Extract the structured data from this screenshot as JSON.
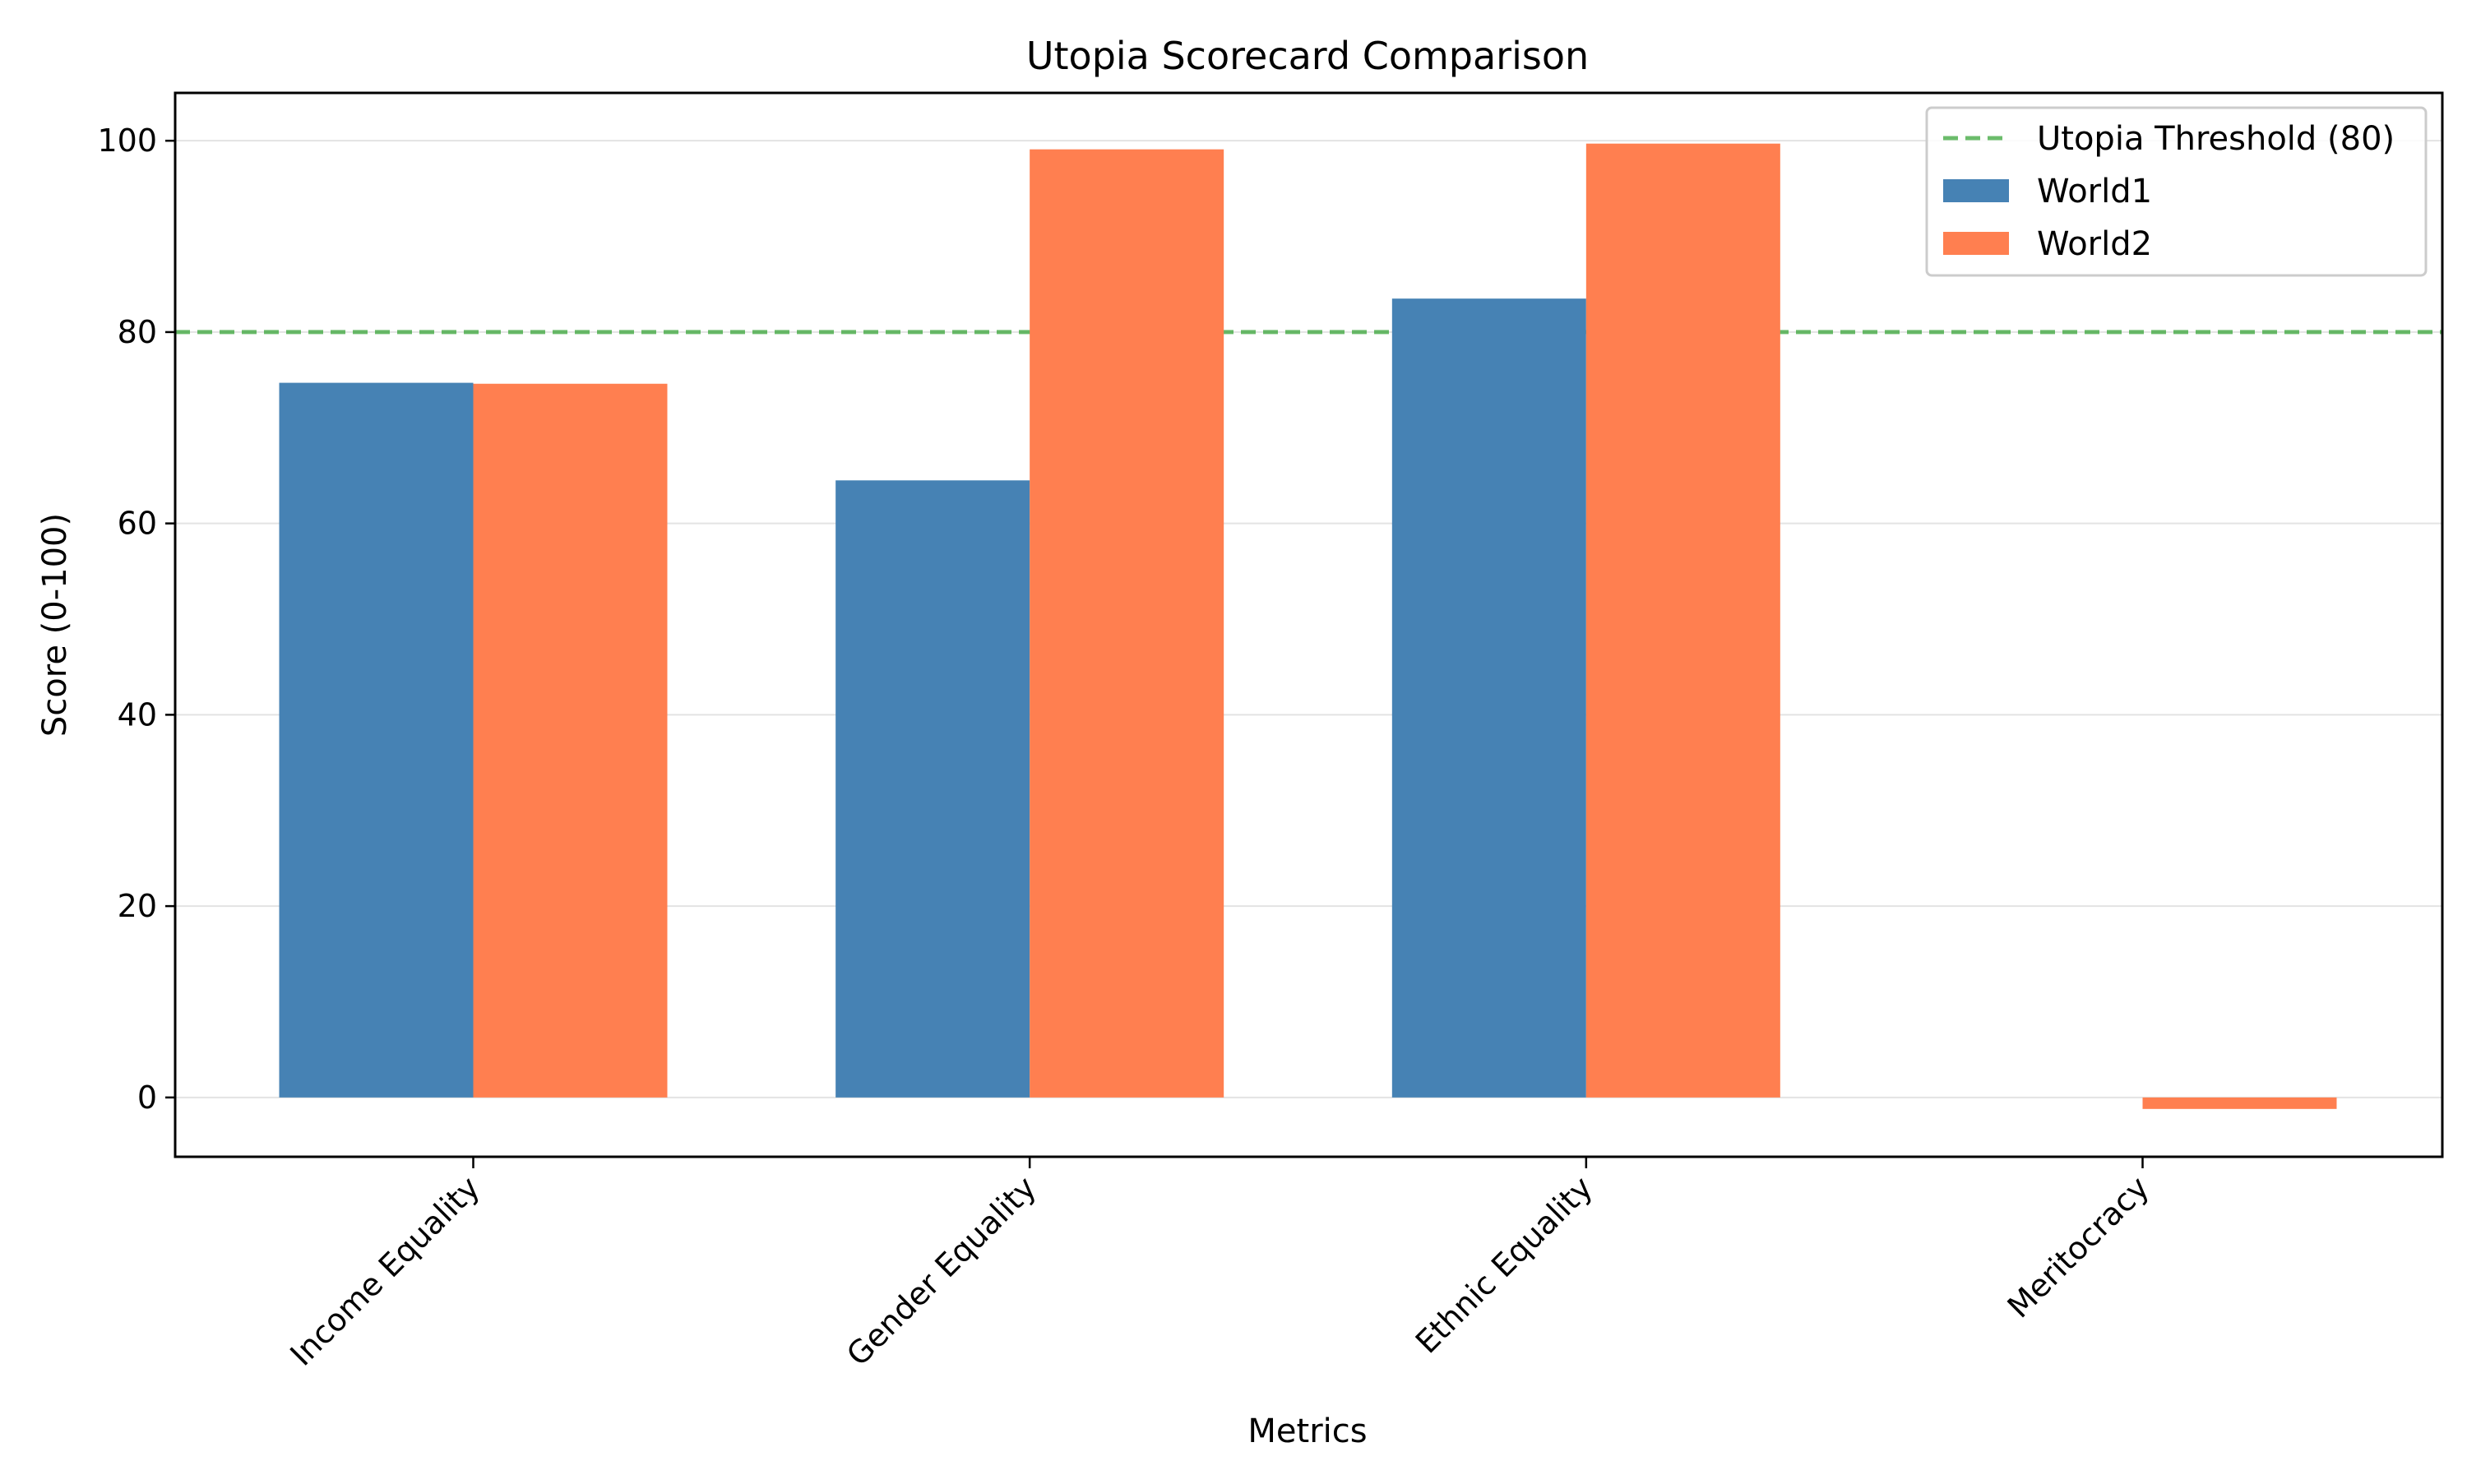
{
  "chart_data": {
    "type": "bar",
    "title": "Utopia Scorecard Comparison",
    "xlabel": "Metrics",
    "ylabel": "Score (0-100)",
    "categories": [
      "Income Equality",
      "Gender Equality",
      "Ethnic Equality",
      "Meritocracy"
    ],
    "series": [
      {
        "name": "World1",
        "color": "#4682b4",
        "values": [
          74.7,
          64.5,
          83.5,
          0
        ]
      },
      {
        "name": "World2",
        "color": "#ff7f50",
        "values": [
          74.6,
          99.1,
          99.7,
          -1.2
        ]
      }
    ],
    "reference_line": {
      "label": "Utopia Threshold (80)",
      "value": 80,
      "color": "#2ca02c",
      "style": "dashed"
    },
    "ylim": [
      -6.2,
      105
    ],
    "yticks": [
      0,
      20,
      40,
      60,
      80,
      100
    ],
    "grid": "horizontal",
    "legend_position": "top-right"
  }
}
